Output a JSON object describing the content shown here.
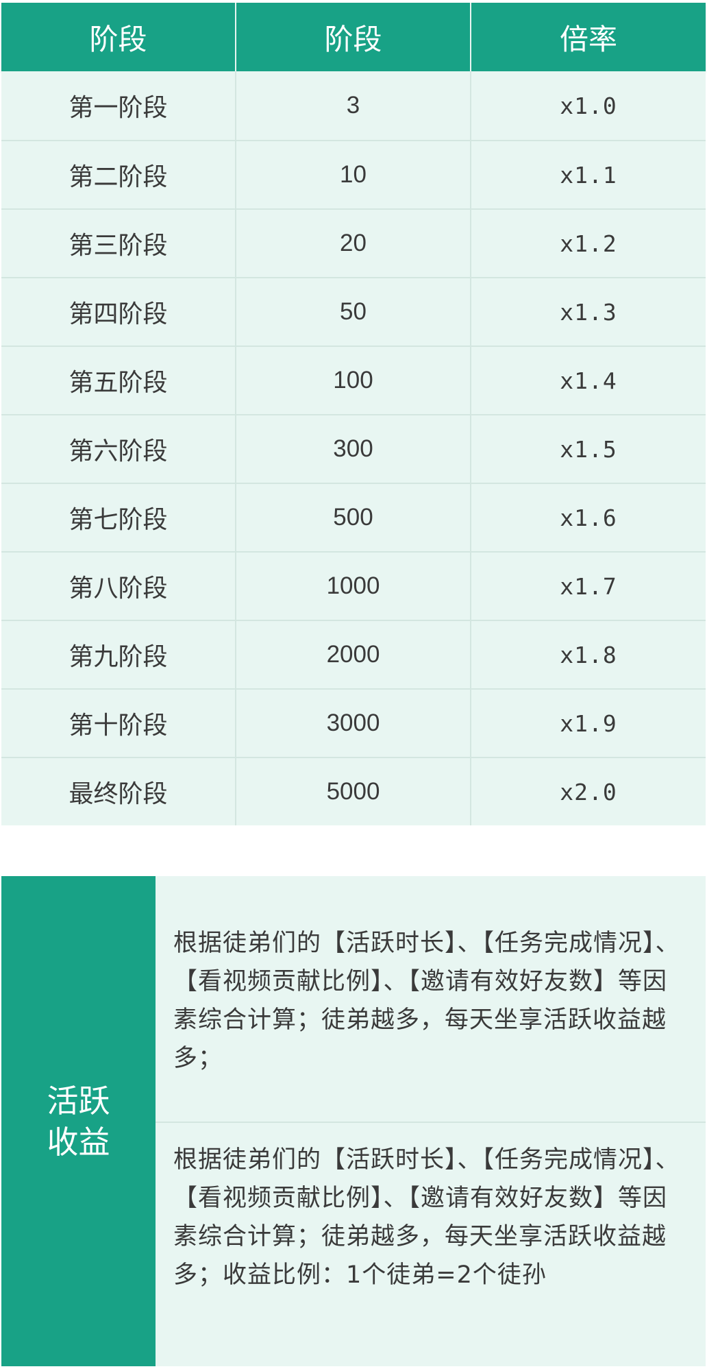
{
  "table": {
    "headers": [
      "阶段",
      "阶段",
      "倍率"
    ],
    "rows": [
      {
        "stage": "第一阶段",
        "count": "3",
        "rate": "x1.0"
      },
      {
        "stage": "第二阶段",
        "count": "10",
        "rate": "x1.1"
      },
      {
        "stage": "第三阶段",
        "count": "20",
        "rate": "x1.2"
      },
      {
        "stage": "第四阶段",
        "count": "50",
        "rate": "x1.3"
      },
      {
        "stage": "第五阶段",
        "count": "100",
        "rate": "x1.4"
      },
      {
        "stage": "第六阶段",
        "count": "300",
        "rate": "x1.5"
      },
      {
        "stage": "第七阶段",
        "count": "500",
        "rate": "x1.6"
      },
      {
        "stage": "第八阶段",
        "count": "1000",
        "rate": "x1.7"
      },
      {
        "stage": "第九阶段",
        "count": "2000",
        "rate": "x1.8"
      },
      {
        "stage": "第十阶段",
        "count": "3000",
        "rate": "x1.9"
      },
      {
        "stage": "最终阶段",
        "count": "5000",
        "rate": "x2.0"
      }
    ]
  },
  "income": {
    "label": "活跃收益",
    "block1": "根据徒弟们的【活跃时长】、【任务完成情况】、【看视频贡献比例】、【邀请有效好友数】等因素综合计算；徒弟越多，每天坐享活跃收益越多；",
    "block2": "根据徒弟们的【活跃时长】、【任务完成情况】、【看视频贡献比例】、【邀请有效好友数】等因素综合计算；徒弟越多，每天坐享活跃收益越多；收益比例：1个徒弟=2个徒孙"
  },
  "colors": {
    "accent": "#18a286",
    "cell_bg": "#e8f6f2",
    "text": "#3a3a3a"
  }
}
